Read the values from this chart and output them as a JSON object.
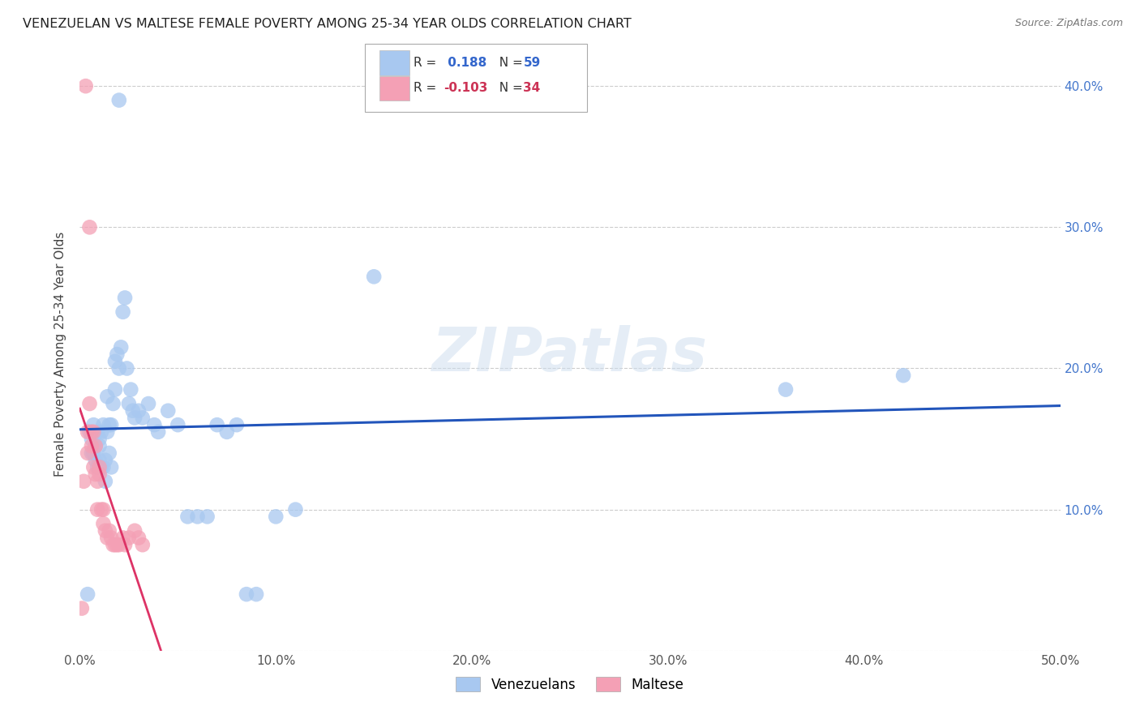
{
  "title": "VENEZUELAN VS MALTESE FEMALE POVERTY AMONG 25-34 YEAR OLDS CORRELATION CHART",
  "source": "Source: ZipAtlas.com",
  "ylabel": "Female Poverty Among 25-34 Year Olds",
  "xlim": [
    0.0,
    0.5
  ],
  "ylim": [
    0.0,
    0.42
  ],
  "legend_r_blue": "0.188",
  "legend_n_blue": "59",
  "legend_r_pink": "-0.103",
  "legend_n_pink": "34",
  "blue_color": "#A8C8F0",
  "pink_color": "#F4A0B5",
  "blue_line_color": "#2255BB",
  "pink_line_color": "#DD3366",
  "pink_line_dash": "#EE99AA",
  "grid_color": "#CCCCCC",
  "background_color": "#FFFFFF",
  "watermark": "ZIPatlas",
  "venezuelan_x": [
    0.004,
    0.02,
    0.005,
    0.006,
    0.006,
    0.007,
    0.007,
    0.008,
    0.008,
    0.009,
    0.009,
    0.01,
    0.01,
    0.01,
    0.011,
    0.011,
    0.012,
    0.012,
    0.013,
    0.013,
    0.014,
    0.014,
    0.015,
    0.015,
    0.016,
    0.016,
    0.017,
    0.018,
    0.018,
    0.019,
    0.02,
    0.021,
    0.022,
    0.023,
    0.024,
    0.025,
    0.026,
    0.027,
    0.028,
    0.03,
    0.032,
    0.035,
    0.038,
    0.04,
    0.045,
    0.05,
    0.055,
    0.06,
    0.065,
    0.07,
    0.075,
    0.08,
    0.085,
    0.09,
    0.1,
    0.11,
    0.15,
    0.36,
    0.42
  ],
  "venezuelan_y": [
    0.04,
    0.39,
    0.155,
    0.14,
    0.15,
    0.16,
    0.14,
    0.145,
    0.135,
    0.155,
    0.13,
    0.15,
    0.145,
    0.135,
    0.155,
    0.13,
    0.16,
    0.13,
    0.135,
    0.12,
    0.18,
    0.155,
    0.16,
    0.14,
    0.16,
    0.13,
    0.175,
    0.205,
    0.185,
    0.21,
    0.2,
    0.215,
    0.24,
    0.25,
    0.2,
    0.175,
    0.185,
    0.17,
    0.165,
    0.17,
    0.165,
    0.175,
    0.16,
    0.155,
    0.17,
    0.16,
    0.095,
    0.095,
    0.095,
    0.16,
    0.155,
    0.16,
    0.04,
    0.04,
    0.095,
    0.1,
    0.265,
    0.185,
    0.195
  ],
  "maltese_x": [
    0.001,
    0.002,
    0.003,
    0.004,
    0.004,
    0.005,
    0.005,
    0.006,
    0.006,
    0.007,
    0.007,
    0.008,
    0.008,
    0.009,
    0.009,
    0.01,
    0.01,
    0.011,
    0.012,
    0.012,
    0.013,
    0.014,
    0.015,
    0.016,
    0.017,
    0.018,
    0.019,
    0.02,
    0.022,
    0.023,
    0.025,
    0.028,
    0.03,
    0.032
  ],
  "maltese_y": [
    0.03,
    0.12,
    0.4,
    0.155,
    0.14,
    0.3,
    0.175,
    0.155,
    0.145,
    0.155,
    0.13,
    0.145,
    0.125,
    0.12,
    0.1,
    0.13,
    0.125,
    0.1,
    0.1,
    0.09,
    0.085,
    0.08,
    0.085,
    0.08,
    0.075,
    0.075,
    0.075,
    0.075,
    0.08,
    0.075,
    0.08,
    0.085,
    0.08,
    0.075
  ]
}
